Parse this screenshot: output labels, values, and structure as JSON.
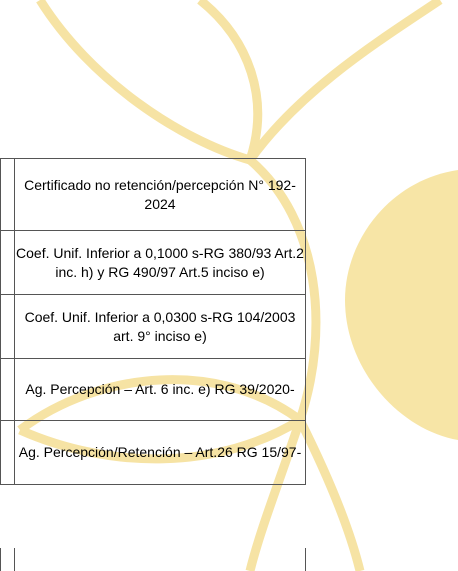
{
  "table": {
    "rows": [
      "Certificado no retención/percepción N° 192-2024",
      "Coef. Unif. Inferior a 0,1000 s-RG 380/93 Art.2 inc. h)  y RG 490/97 Art.5 inciso e)",
      "Coef. Unif. Inferior a 0,0300 s-RG 104/2003 art. 9° inciso e)",
      "Ag. Percepción – Art. 6 inc. e) RG 39/2020-",
      "Ag. Percepción/Retención – Art.26 RG 15/97-"
    ]
  }
}
